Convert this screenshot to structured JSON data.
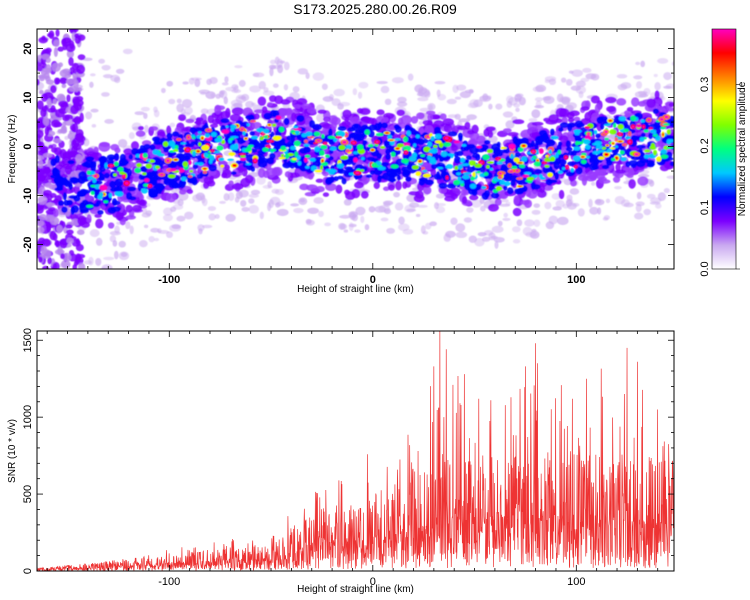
{
  "title": "S173.2025.280.00.26.R09",
  "chart_data": [
    {
      "type": "heatmap",
      "xlabel": "Height of straight line (km)",
      "ylabel": "Frequency (Hz)",
      "xlim": [
        -165,
        148
      ],
      "ylim": [
        -25,
        24
      ],
      "x_ticks": [
        -100,
        0,
        100
      ],
      "y_ticks": [
        -20,
        -10,
        0,
        10,
        20
      ],
      "colorbar": {
        "label": "Normalized spectral amplitude",
        "range": [
          0.0,
          0.39
        ],
        "ticks": [
          0.0,
          0.1,
          0.2,
          0.3
        ],
        "tick_labels": [
          "0.0",
          "0.1",
          "0.2",
          "0.3"
        ],
        "colormap": [
          "#ffffff",
          "#c9a8f0",
          "#7b00ff",
          "#0000ff",
          "#00c8ff",
          "#00ff80",
          "#80ff00",
          "#ffff00",
          "#ff8000",
          "#ff0000",
          "#ff00c0"
        ]
      },
      "band_center_hz": [
        {
          "x": -165,
          "y": -8
        },
        {
          "x": -130,
          "y": -8
        },
        {
          "x": -100,
          "y": -3
        },
        {
          "x": -70,
          "y": 0
        },
        {
          "x": -45,
          "y": 2
        },
        {
          "x": -20,
          "y": -2
        },
        {
          "x": 0,
          "y": -1
        },
        {
          "x": 30,
          "y": -2
        },
        {
          "x": 60,
          "y": -5
        },
        {
          "x": 80,
          "y": -3
        },
        {
          "x": 110,
          "y": 1
        },
        {
          "x": 148,
          "y": 2
        }
      ],
      "band_halfwidth_hz": 8
    },
    {
      "type": "line",
      "xlabel": "Height of straight line (km)",
      "ylabel": "SNR (10 * v/v)",
      "xlim": [
        -165,
        148
      ],
      "ylim": [
        0,
        1560
      ],
      "x_ticks": [
        -100,
        0,
        100
      ],
      "y_ticks": [
        0,
        500,
        1000,
        1500
      ],
      "series": [
        {
          "color": "#ee3333",
          "envelope": [
            {
              "x": -165,
              "typical": 10,
              "peak": 20
            },
            {
              "x": -140,
              "typical": 25,
              "peak": 50
            },
            {
              "x": -120,
              "typical": 40,
              "peak": 90
            },
            {
              "x": -100,
              "typical": 55,
              "peak": 150
            },
            {
              "x": -80,
              "typical": 70,
              "peak": 190
            },
            {
              "x": -65,
              "typical": 80,
              "peak": 240
            },
            {
              "x": -50,
              "typical": 90,
              "peak": 220
            },
            {
              "x": -40,
              "typical": 130,
              "peak": 400
            },
            {
              "x": -30,
              "typical": 200,
              "peak": 480
            },
            {
              "x": -20,
              "typical": 210,
              "peak": 770
            },
            {
              "x": 0,
              "typical": 260,
              "peak": 850
            },
            {
              "x": 15,
              "typical": 290,
              "peak": 880
            },
            {
              "x": 25,
              "typical": 320,
              "peak": 1150
            },
            {
              "x": 33,
              "typical": 380,
              "peak": 1560
            },
            {
              "x": 50,
              "typical": 380,
              "peak": 1250
            },
            {
              "x": 70,
              "typical": 380,
              "peak": 1350
            },
            {
              "x": 80,
              "typical": 390,
              "peak": 1480
            },
            {
              "x": 100,
              "typical": 390,
              "peak": 1300
            },
            {
              "x": 125,
              "typical": 380,
              "peak": 1450
            },
            {
              "x": 140,
              "typical": 370,
              "peak": 1050
            },
            {
              "x": 148,
              "typical": 360,
              "peak": 800
            }
          ],
          "peaks": [
            {
              "x": 30,
              "y": 1330
            },
            {
              "x": 33,
              "y": 1560
            },
            {
              "x": 35,
              "y": 1000
            },
            {
              "x": 45,
              "y": 1280
            },
            {
              "x": 52,
              "y": 1120
            },
            {
              "x": 75,
              "y": 1330
            },
            {
              "x": 80,
              "y": 1480
            },
            {
              "x": 98,
              "y": 1120
            },
            {
              "x": 105,
              "y": 1250
            },
            {
              "x": 125,
              "y": 1450
            },
            {
              "x": 130,
              "y": 1360
            },
            {
              "x": 140,
              "y": 1050
            }
          ]
        }
      ]
    }
  ]
}
